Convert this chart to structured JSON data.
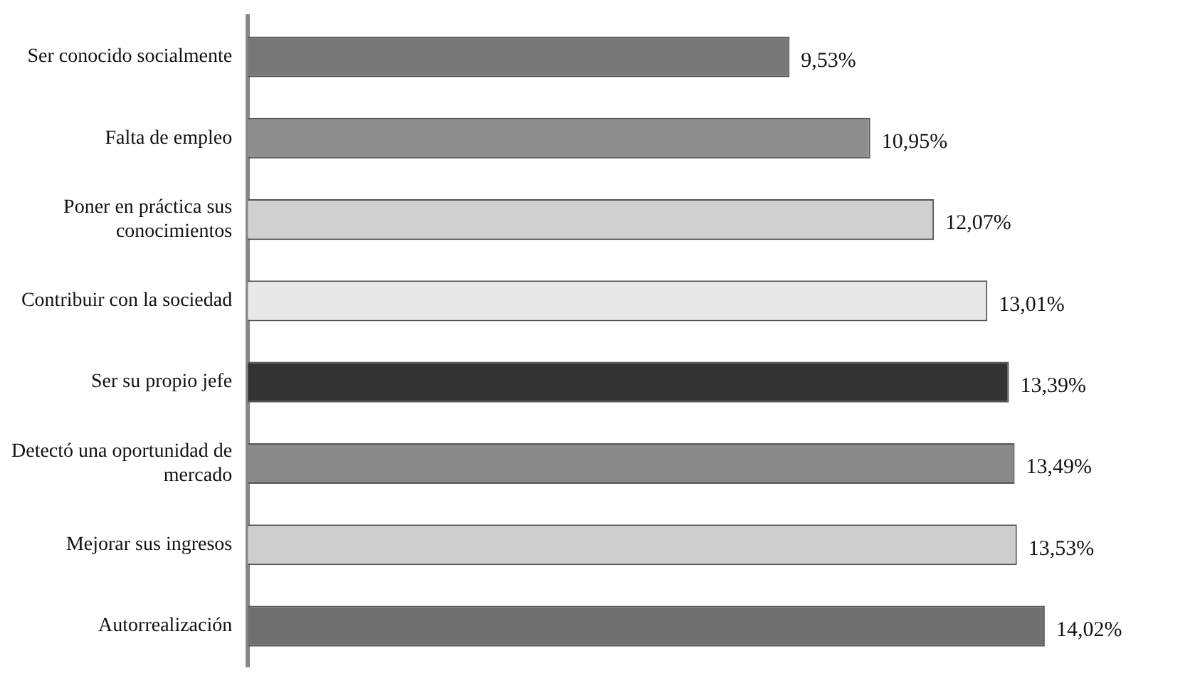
{
  "chart_data": {
    "type": "bar",
    "orientation": "horizontal",
    "categories": [
      "Ser conocido socialmente",
      "Falta de empleo",
      "Poner en práctica sus conocimientos",
      "Contribuir con la sociedad",
      "Ser su propio jefe",
      "Detectó una oportunidad de mercado",
      "Mejorar sus ingresos",
      "Autorrealización"
    ],
    "values": [
      9.53,
      10.95,
      12.07,
      13.01,
      13.39,
      13.49,
      13.53,
      14.02
    ],
    "value_labels": [
      "9,53%",
      "10,95%",
      "12,07%",
      "13,01%",
      "13,39%",
      "13,49%",
      "13,53%",
      "14,02%"
    ],
    "colors": [
      "#777777",
      "#8e8e8e",
      "#d0d0d0",
      "#e8e8e8",
      "#333333",
      "#8a8a8a",
      "#cdcdcd",
      "#707070"
    ],
    "tick_labels": "y",
    "legend": false
  }
}
